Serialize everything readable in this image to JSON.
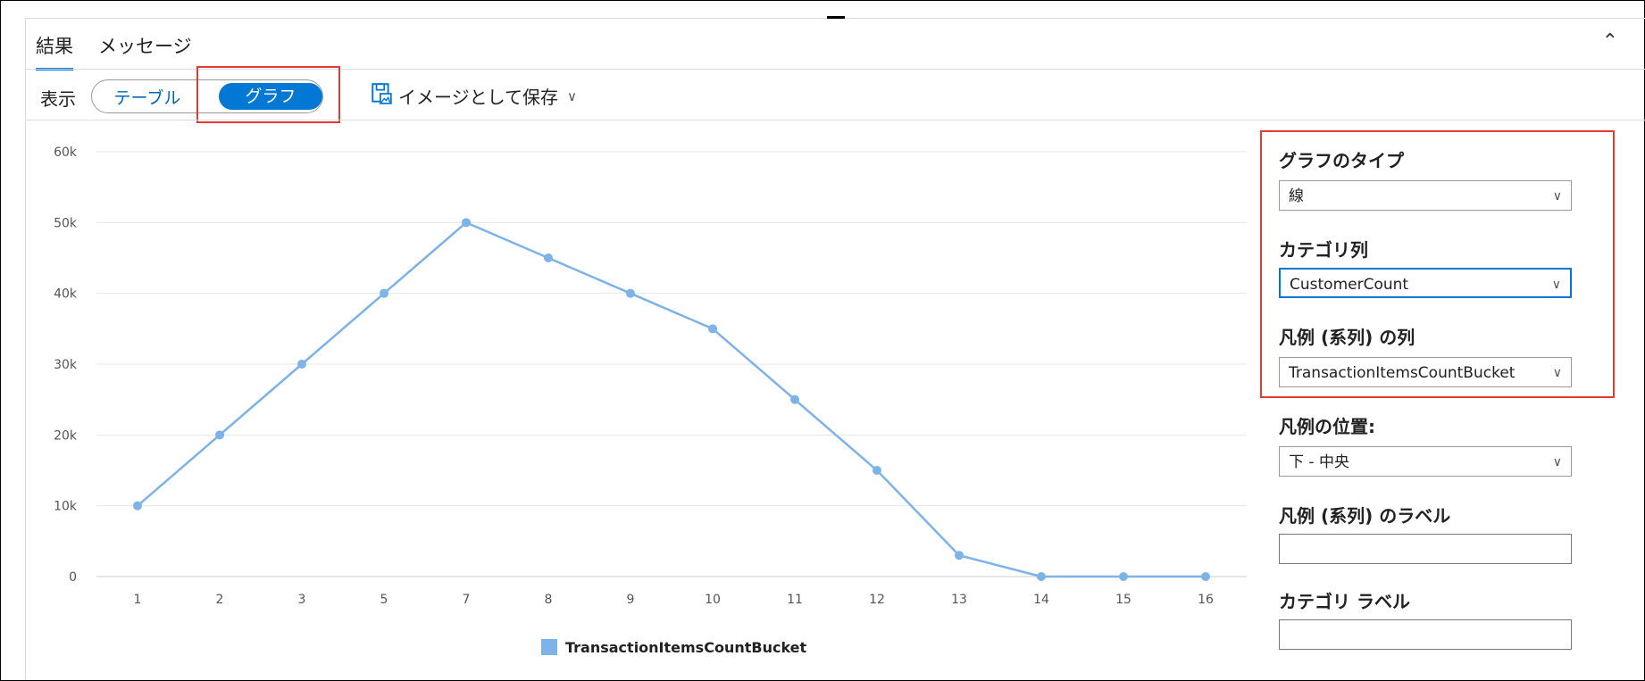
{
  "tabs": [
    {
      "label": "結果",
      "active": true
    },
    {
      "label": "メッセージ",
      "active": false
    }
  ],
  "collapse_icon": "chevron-up-icon",
  "toolbar": {
    "view_label": "表示",
    "toggle": {
      "table": "テーブル",
      "graph": "グラフ",
      "selected": "グラフ"
    },
    "save_label": "イメージとして保存"
  },
  "colors": {
    "accent": "#0078d4",
    "line": "#7db3e8",
    "highlight": "#e53935"
  },
  "chart_data": {
    "type": "line",
    "categories": [
      "1",
      "2",
      "3",
      "5",
      "7",
      "8",
      "9",
      "10",
      "11",
      "12",
      "13",
      "14",
      "15",
      "16"
    ],
    "series": [
      {
        "name": "TransactionItemsCountBucket",
        "values": [
          10000,
          20000,
          30000,
          40000,
          50000,
          45000,
          40000,
          35000,
          25000,
          15000,
          3000,
          0,
          0,
          0
        ]
      }
    ],
    "ylim": [
      0,
      60000
    ],
    "yticks": [
      0,
      10000,
      20000,
      30000,
      40000,
      50000,
      60000
    ],
    "ytick_labels": [
      "0",
      "10k",
      "20k",
      "30k",
      "40k",
      "50k",
      "60k"
    ],
    "legend": "bottom-center",
    "title": "",
    "xlabel": "",
    "ylabel": ""
  },
  "panel": {
    "chart_type": {
      "label": "グラフのタイプ",
      "value": "線"
    },
    "category_column": {
      "label": "カテゴリ列",
      "value": "CustomerCount"
    },
    "legend_column": {
      "label": "凡例 (系列) の列",
      "value": "TransactionItemsCountBucket"
    },
    "legend_position": {
      "label": "凡例の位置:",
      "value": "下 - 中央"
    },
    "legend_label": {
      "label": "凡例 (系列) のラベル",
      "value": ""
    },
    "category_label": {
      "label": "カテゴリ ラベル",
      "value": ""
    }
  }
}
